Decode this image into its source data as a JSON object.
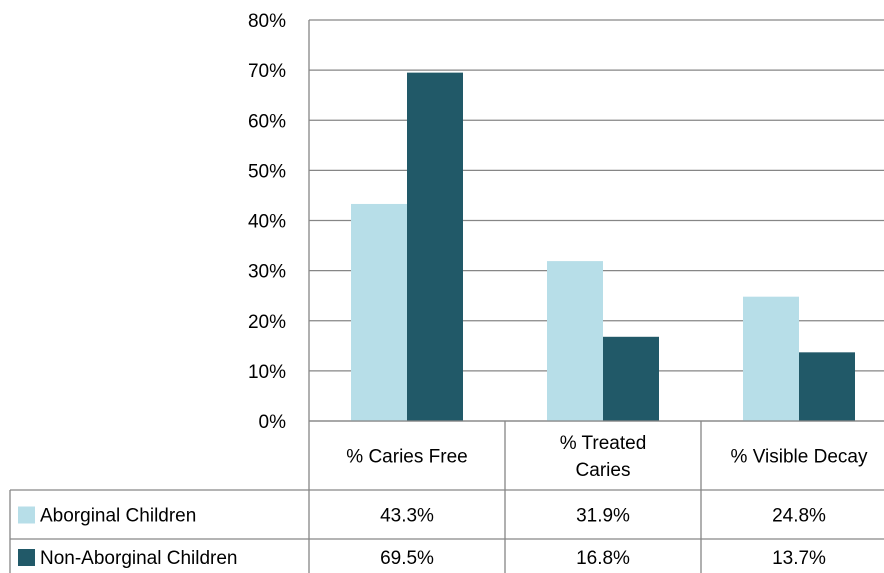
{
  "chart_data": {
    "type": "bar",
    "categories": [
      "% Caries Free",
      "% Treated Caries",
      "% Visible Decay"
    ],
    "category_lines": [
      [
        "% Caries Free"
      ],
      [
        "% Treated",
        "Caries"
      ],
      [
        "% Visible Decay"
      ]
    ],
    "series": [
      {
        "name": "Aborginal Children",
        "color": "#b7dee8",
        "values": [
          43.3,
          31.9,
          24.8
        ],
        "labels": [
          "43.3%",
          "31.9%",
          "24.8%"
        ]
      },
      {
        "name": "Non-Aborginal Children",
        "color": "#215968",
        "values": [
          69.5,
          16.8,
          13.7
        ],
        "labels": [
          "69.5%",
          "16.8%",
          "13.7%"
        ]
      }
    ],
    "ylim": [
      0,
      80
    ],
    "yticks": [
      "0%",
      "10%",
      "20%",
      "30%",
      "40%",
      "50%",
      "60%",
      "70%",
      "80%"
    ],
    "grid": true,
    "legend": "data-table"
  }
}
